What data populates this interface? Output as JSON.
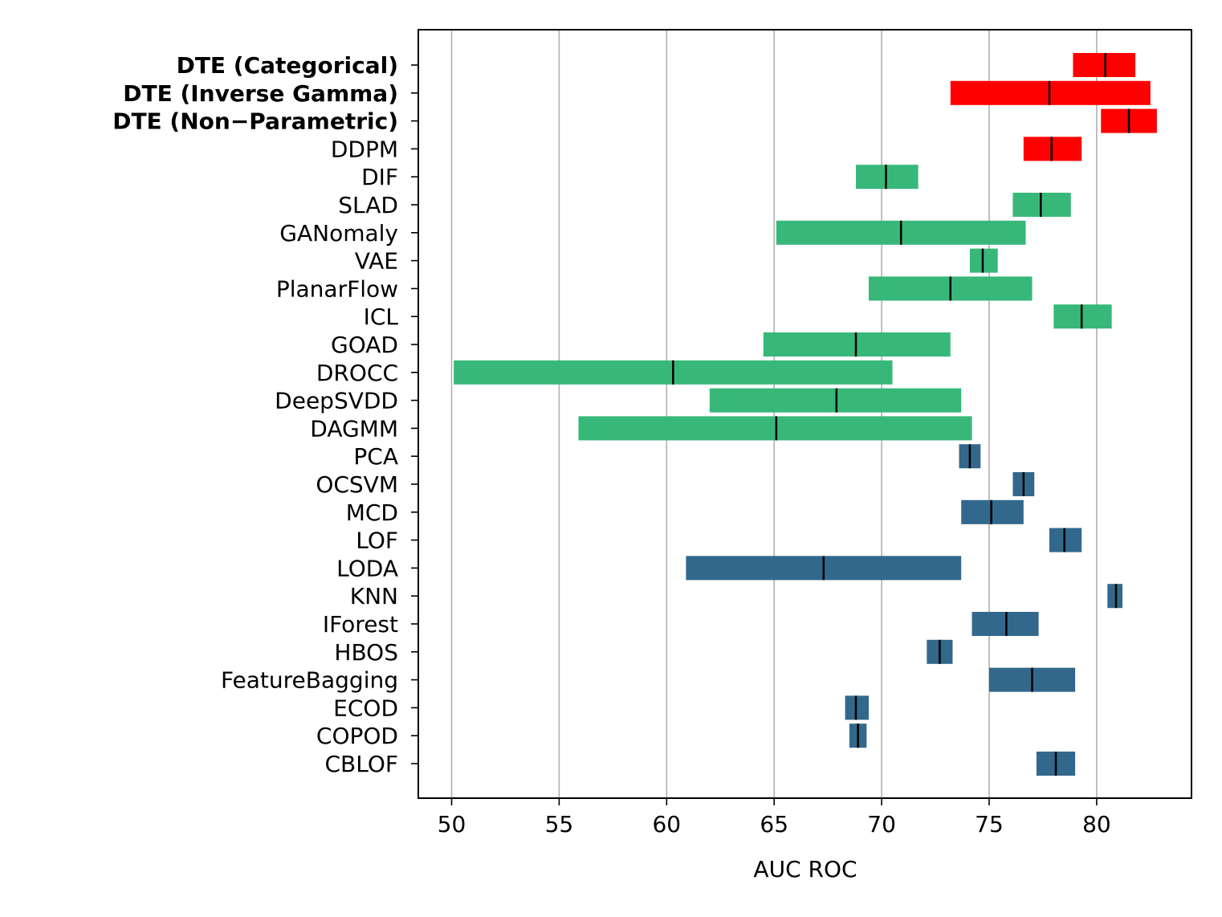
{
  "chart_data": {
    "type": "bar",
    "orientation": "horizontal-range",
    "title": "",
    "xlabel": "AUC ROC",
    "ylabel": "",
    "xlim": [
      48.5,
      84.4
    ],
    "xticks": [
      50,
      55,
      60,
      65,
      70,
      75,
      80
    ],
    "grid": "vertical",
    "series_colors": {
      "diffusion": "#ff0000",
      "deep": "#37b879",
      "classical": "#32688b",
      "median_marker": "#000000"
    },
    "categories": [
      "DTE (Categorical)",
      "DTE (Inverse Gamma)",
      "DTE (Non−Parametric)",
      "DDPM",
      "DIF",
      "SLAD",
      "GANomaly",
      "VAE",
      "PlanarFlow",
      "ICL",
      "GOAD",
      "DROCC",
      "DeepSVDD",
      "DAGMM",
      "PCA",
      "OCSVM",
      "MCD",
      "LOF",
      "LODA",
      "KNN",
      "IForest",
      "HBOS",
      "FeatureBagging",
      "ECOD",
      "COPOD",
      "CBLOF"
    ],
    "bold_categories": [
      "DTE (Categorical)",
      "DTE (Inverse Gamma)",
      "DTE (Non−Parametric)"
    ],
    "groups": [
      "diffusion",
      "diffusion",
      "diffusion",
      "diffusion",
      "deep",
      "deep",
      "deep",
      "deep",
      "deep",
      "deep",
      "deep",
      "deep",
      "deep",
      "deep",
      "classical",
      "classical",
      "classical",
      "classical",
      "classical",
      "classical",
      "classical",
      "classical",
      "classical",
      "classical",
      "classical",
      "classical"
    ],
    "low": [
      78.9,
      73.2,
      80.2,
      76.6,
      68.8,
      76.1,
      65.1,
      74.1,
      69.4,
      78.0,
      64.5,
      50.1,
      62.0,
      55.9,
      73.6,
      76.1,
      73.7,
      77.8,
      60.9,
      80.5,
      74.2,
      72.1,
      75.0,
      68.3,
      68.5,
      77.2
    ],
    "high": [
      81.8,
      82.5,
      82.8,
      79.3,
      71.7,
      78.8,
      76.7,
      75.4,
      77.0,
      80.7,
      73.2,
      70.5,
      73.7,
      74.2,
      74.6,
      77.1,
      76.6,
      79.3,
      73.7,
      81.2,
      77.3,
      73.3,
      79.0,
      69.4,
      69.3,
      79.0
    ],
    "median": [
      80.4,
      77.8,
      81.5,
      77.9,
      70.2,
      77.4,
      70.9,
      74.7,
      73.2,
      79.3,
      68.8,
      60.3,
      67.9,
      65.1,
      74.1,
      76.6,
      75.1,
      78.5,
      67.3,
      80.9,
      75.8,
      72.7,
      77.0,
      68.8,
      68.9,
      78.1
    ]
  }
}
